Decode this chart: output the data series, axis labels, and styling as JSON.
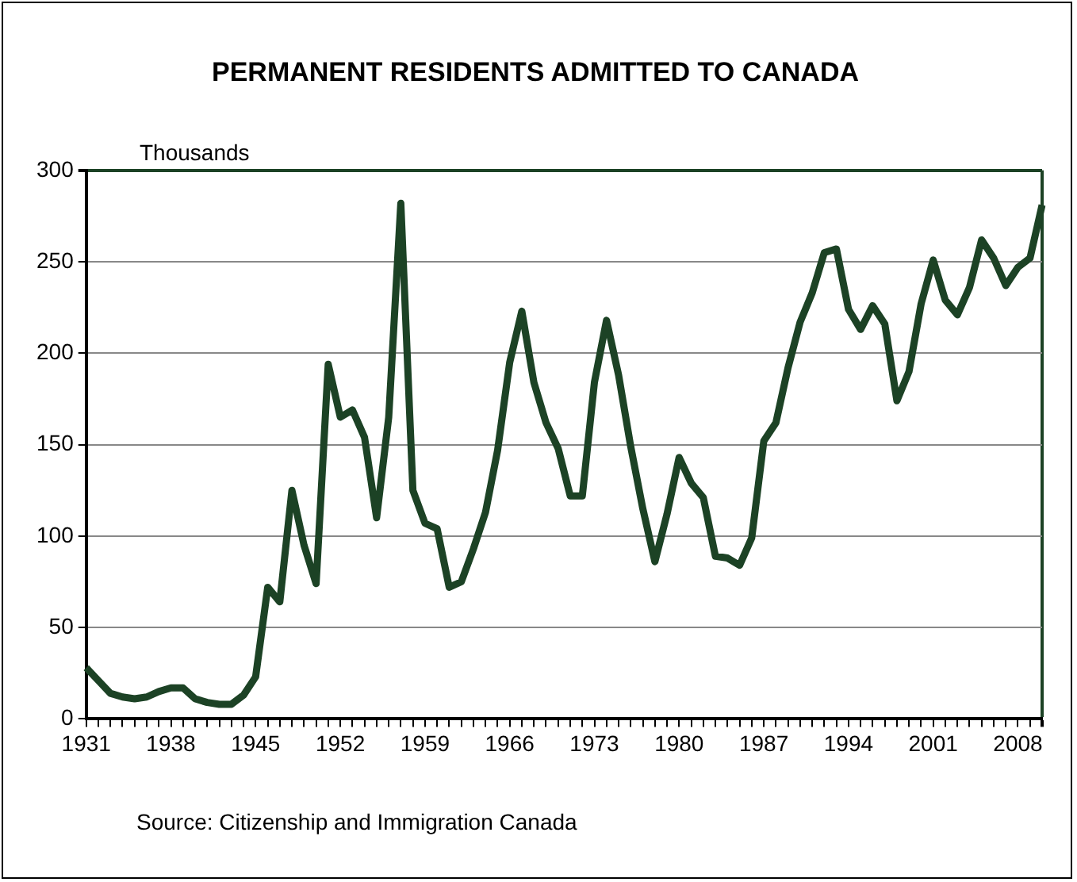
{
  "chart_data": {
    "type": "line",
    "title": "PERMANENT RESIDENTS ADMITTED TO CANADA",
    "ylabel": "Thousands",
    "annotations": [
      "Source: Citizenship and Immigration Canada"
    ],
    "categories": [
      "1931",
      null,
      null,
      null,
      null,
      null,
      null,
      "1938",
      null,
      null,
      null,
      null,
      null,
      null,
      "1945",
      null,
      null,
      null,
      null,
      null,
      null,
      "1952",
      null,
      null,
      null,
      null,
      null,
      null,
      "1959",
      null,
      null,
      null,
      null,
      null,
      null,
      "1966",
      null,
      null,
      null,
      null,
      null,
      null,
      "1973",
      null,
      null,
      null,
      null,
      null,
      null,
      "1980",
      null,
      null,
      null,
      null,
      null,
      null,
      "1987",
      null,
      null,
      null,
      null,
      null,
      null,
      "1994",
      null,
      null,
      null,
      null,
      null,
      null,
      "2001",
      null,
      null,
      null,
      null,
      null,
      null,
      "2008",
      null,
      null
    ],
    "series": [
      {
        "color": "#1c4225",
        "values": [
          28,
          21,
          14,
          12,
          11,
          12,
          15,
          17,
          17,
          11,
          9,
          8,
          8,
          13,
          23,
          72,
          64,
          125,
          95,
          74,
          194,
          165,
          169,
          154,
          110,
          165,
          282,
          125,
          107,
          104,
          72,
          75,
          93,
          113,
          147,
          195,
          223,
          184,
          162,
          148,
          122,
          122,
          184,
          218,
          188,
          149,
          115,
          86,
          112,
          143,
          129,
          121,
          89,
          88,
          84,
          99,
          152,
          162,
          192,
          217,
          233,
          255,
          257,
          224,
          213,
          226,
          216,
          174,
          190,
          227,
          251,
          229,
          221,
          236,
          262,
          252,
          237,
          247,
          252,
          281
        ]
      }
    ],
    "ylim": [
      0,
      300
    ],
    "yticks": [
      0,
      50,
      100,
      150,
      200,
      250,
      300
    ],
    "grid": "y",
    "legend": false,
    "marker": "none",
    "line_style": "solid"
  }
}
